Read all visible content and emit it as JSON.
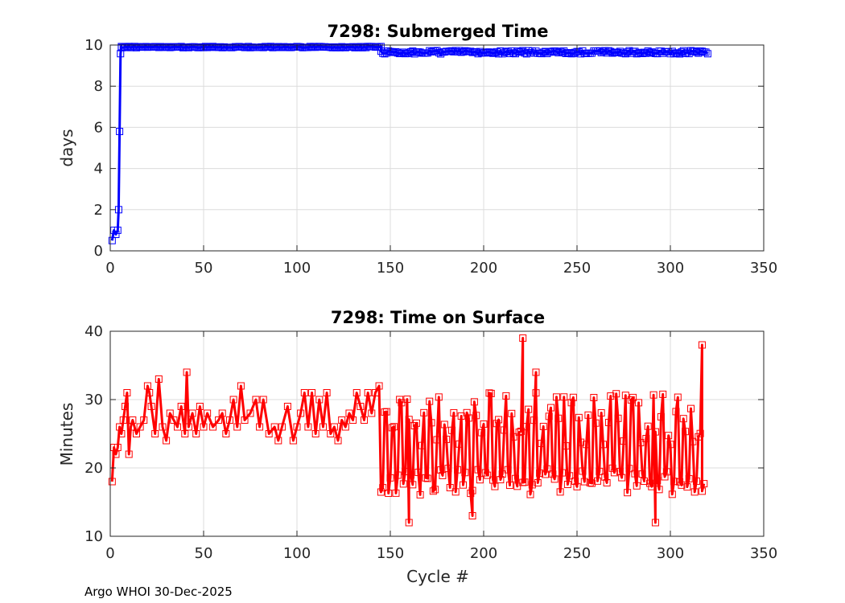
{
  "footer": "Argo WHOI 30-Dec-2025",
  "chart_data": [
    {
      "type": "line",
      "title": "7298: Submerged Time",
      "xlabel": "",
      "ylabel": "days",
      "xlim": [
        0,
        350
      ],
      "ylim": [
        0,
        10
      ],
      "xticks": [
        0,
        50,
        100,
        150,
        200,
        250,
        300,
        350
      ],
      "yticks": [
        0,
        2,
        4,
        6,
        8,
        10
      ],
      "grid": true,
      "color": "#0000ff",
      "marker": "square",
      "series": [
        {
          "segments": [
            {
              "x": [
                1,
                2,
                3,
                4
              ],
              "y": [
                0.5,
                1.0,
                0.8,
                1.0
              ]
            },
            {
              "x": [
                4.5,
                5
              ],
              "y": [
                2.0,
                5.8
              ]
            },
            {
              "x": [
                5.5,
                6,
                145
              ],
              "y": [
                9.6,
                9.9,
                9.9
              ],
              "y_jitter": 0.03
            },
            {
              "x": [
                145,
                320
              ],
              "y": [
                9.65,
                9.65
              ],
              "y_jitter": 0.08
            }
          ]
        }
      ]
    },
    {
      "type": "line",
      "title": "7298: Time on Surface",
      "xlabel": "Cycle #",
      "ylabel": "Minutes",
      "xlim": [
        0,
        350
      ],
      "ylim": [
        10,
        40
      ],
      "xticks": [
        0,
        50,
        100,
        150,
        200,
        250,
        300,
        350
      ],
      "yticks": [
        10,
        20,
        30,
        40
      ],
      "grid": true,
      "color": "#ff0000",
      "marker": "square",
      "series": [
        {
          "segments": [
            {
              "x": [
                1,
                2,
                3,
                4,
                5,
                6,
                7,
                8,
                9,
                10,
                11,
                12,
                14,
                16,
                18,
                20,
                21,
                22,
                24,
                26,
                28,
                30,
                32,
                34,
                36,
                38,
                40,
                41,
                42,
                44,
                46,
                48,
                50,
                52,
                55,
                58,
                60,
                62,
                64,
                66,
                68,
                70,
                72,
                75,
                78,
                80,
                82,
                85,
                88,
                90,
                92,
                95,
                98,
                100,
                102,
                104,
                106,
                108,
                110,
                112,
                114,
                116,
                118,
                120,
                122,
                124,
                126,
                128,
                130,
                132,
                134,
                136,
                138,
                140,
                142,
                144
              ],
              "y": [
                18,
                23,
                22,
                23,
                26,
                25,
                27,
                29,
                31,
                22,
                26,
                27,
                25,
                26,
                27,
                32,
                31,
                29,
                25,
                33,
                26,
                24,
                28,
                27,
                26,
                29,
                25,
                34,
                26,
                28,
                25,
                29,
                26,
                28,
                26,
                27,
                28,
                25,
                27,
                30,
                26,
                32,
                27,
                28,
                30,
                26,
                30,
                25,
                26,
                24,
                26,
                29,
                24,
                26,
                28,
                31,
                26,
                31,
                25,
                30,
                26,
                31,
                25,
                26,
                24,
                27,
                26,
                28,
                27,
                31,
                29,
                27,
                31,
                28,
                31,
                32
              ]
            },
            {
              "x": [
                145,
                318
              ],
              "y": [
                21.5,
                21.5
              ],
              "y_range": [
                15,
                31
              ],
              "count": 173,
              "mode": "oscillate"
            }
          ],
          "highlights": [
            {
              "x": 160,
              "y": 12
            },
            {
              "x": 194,
              "y": 13
            },
            {
              "x": 221,
              "y": 39
            },
            {
              "x": 228,
              "y": 34
            },
            {
              "x": 292,
              "y": 12
            },
            {
              "x": 317,
              "y": 38
            }
          ]
        }
      ]
    }
  ]
}
